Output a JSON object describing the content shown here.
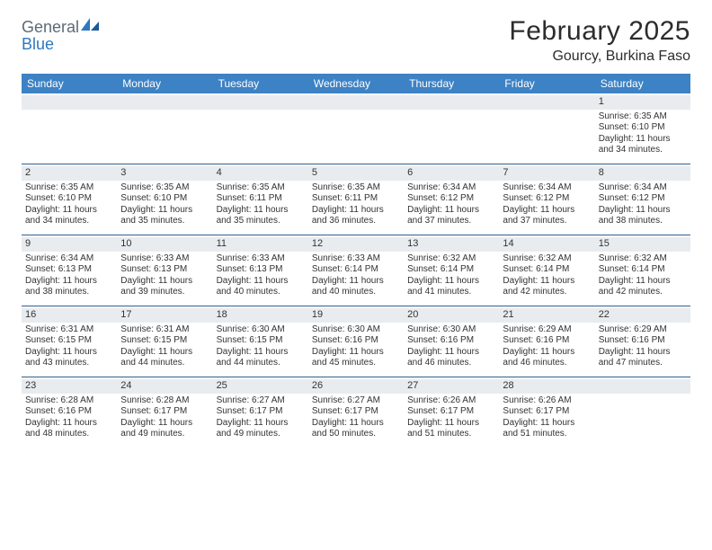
{
  "logo": {
    "line1": "General",
    "line2": "Blue"
  },
  "title": "February 2025",
  "location": "Gourcy, Burkina Faso",
  "colors": {
    "header_bg": "#3d82c4",
    "header_text": "#ffffff",
    "daynum_bg": "#e9ecef",
    "week_divider": "#2f5f8f",
    "logo_gray": "#5c6a78",
    "logo_blue": "#2f78c0"
  },
  "weekdays": [
    "Sunday",
    "Monday",
    "Tuesday",
    "Wednesday",
    "Thursday",
    "Friday",
    "Saturday"
  ],
  "weeks": [
    [
      {
        "n": "",
        "lines": []
      },
      {
        "n": "",
        "lines": []
      },
      {
        "n": "",
        "lines": []
      },
      {
        "n": "",
        "lines": []
      },
      {
        "n": "",
        "lines": []
      },
      {
        "n": "",
        "lines": []
      },
      {
        "n": "1",
        "lines": [
          "Sunrise: 6:35 AM",
          "Sunset: 6:10 PM",
          "Daylight: 11 hours and 34 minutes."
        ]
      }
    ],
    [
      {
        "n": "2",
        "lines": [
          "Sunrise: 6:35 AM",
          "Sunset: 6:10 PM",
          "Daylight: 11 hours and 34 minutes."
        ]
      },
      {
        "n": "3",
        "lines": [
          "Sunrise: 6:35 AM",
          "Sunset: 6:10 PM",
          "Daylight: 11 hours and 35 minutes."
        ]
      },
      {
        "n": "4",
        "lines": [
          "Sunrise: 6:35 AM",
          "Sunset: 6:11 PM",
          "Daylight: 11 hours and 35 minutes."
        ]
      },
      {
        "n": "5",
        "lines": [
          "Sunrise: 6:35 AM",
          "Sunset: 6:11 PM",
          "Daylight: 11 hours and 36 minutes."
        ]
      },
      {
        "n": "6",
        "lines": [
          "Sunrise: 6:34 AM",
          "Sunset: 6:12 PM",
          "Daylight: 11 hours and 37 minutes."
        ]
      },
      {
        "n": "7",
        "lines": [
          "Sunrise: 6:34 AM",
          "Sunset: 6:12 PM",
          "Daylight: 11 hours and 37 minutes."
        ]
      },
      {
        "n": "8",
        "lines": [
          "Sunrise: 6:34 AM",
          "Sunset: 6:12 PM",
          "Daylight: 11 hours and 38 minutes."
        ]
      }
    ],
    [
      {
        "n": "9",
        "lines": [
          "Sunrise: 6:34 AM",
          "Sunset: 6:13 PM",
          "Daylight: 11 hours and 38 minutes."
        ]
      },
      {
        "n": "10",
        "lines": [
          "Sunrise: 6:33 AM",
          "Sunset: 6:13 PM",
          "Daylight: 11 hours and 39 minutes."
        ]
      },
      {
        "n": "11",
        "lines": [
          "Sunrise: 6:33 AM",
          "Sunset: 6:13 PM",
          "Daylight: 11 hours and 40 minutes."
        ]
      },
      {
        "n": "12",
        "lines": [
          "Sunrise: 6:33 AM",
          "Sunset: 6:14 PM",
          "Daylight: 11 hours and 40 minutes."
        ]
      },
      {
        "n": "13",
        "lines": [
          "Sunrise: 6:32 AM",
          "Sunset: 6:14 PM",
          "Daylight: 11 hours and 41 minutes."
        ]
      },
      {
        "n": "14",
        "lines": [
          "Sunrise: 6:32 AM",
          "Sunset: 6:14 PM",
          "Daylight: 11 hours and 42 minutes."
        ]
      },
      {
        "n": "15",
        "lines": [
          "Sunrise: 6:32 AM",
          "Sunset: 6:14 PM",
          "Daylight: 11 hours and 42 minutes."
        ]
      }
    ],
    [
      {
        "n": "16",
        "lines": [
          "Sunrise: 6:31 AM",
          "Sunset: 6:15 PM",
          "Daylight: 11 hours and 43 minutes."
        ]
      },
      {
        "n": "17",
        "lines": [
          "Sunrise: 6:31 AM",
          "Sunset: 6:15 PM",
          "Daylight: 11 hours and 44 minutes."
        ]
      },
      {
        "n": "18",
        "lines": [
          "Sunrise: 6:30 AM",
          "Sunset: 6:15 PM",
          "Daylight: 11 hours and 44 minutes."
        ]
      },
      {
        "n": "19",
        "lines": [
          "Sunrise: 6:30 AM",
          "Sunset: 6:16 PM",
          "Daylight: 11 hours and 45 minutes."
        ]
      },
      {
        "n": "20",
        "lines": [
          "Sunrise: 6:30 AM",
          "Sunset: 6:16 PM",
          "Daylight: 11 hours and 46 minutes."
        ]
      },
      {
        "n": "21",
        "lines": [
          "Sunrise: 6:29 AM",
          "Sunset: 6:16 PM",
          "Daylight: 11 hours and 46 minutes."
        ]
      },
      {
        "n": "22",
        "lines": [
          "Sunrise: 6:29 AM",
          "Sunset: 6:16 PM",
          "Daylight: 11 hours and 47 minutes."
        ]
      }
    ],
    [
      {
        "n": "23",
        "lines": [
          "Sunrise: 6:28 AM",
          "Sunset: 6:16 PM",
          "Daylight: 11 hours and 48 minutes."
        ]
      },
      {
        "n": "24",
        "lines": [
          "Sunrise: 6:28 AM",
          "Sunset: 6:17 PM",
          "Daylight: 11 hours and 49 minutes."
        ]
      },
      {
        "n": "25",
        "lines": [
          "Sunrise: 6:27 AM",
          "Sunset: 6:17 PM",
          "Daylight: 11 hours and 49 minutes."
        ]
      },
      {
        "n": "26",
        "lines": [
          "Sunrise: 6:27 AM",
          "Sunset: 6:17 PM",
          "Daylight: 11 hours and 50 minutes."
        ]
      },
      {
        "n": "27",
        "lines": [
          "Sunrise: 6:26 AM",
          "Sunset: 6:17 PM",
          "Daylight: 11 hours and 51 minutes."
        ]
      },
      {
        "n": "28",
        "lines": [
          "Sunrise: 6:26 AM",
          "Sunset: 6:17 PM",
          "Daylight: 11 hours and 51 minutes."
        ]
      },
      {
        "n": "",
        "lines": []
      }
    ]
  ]
}
